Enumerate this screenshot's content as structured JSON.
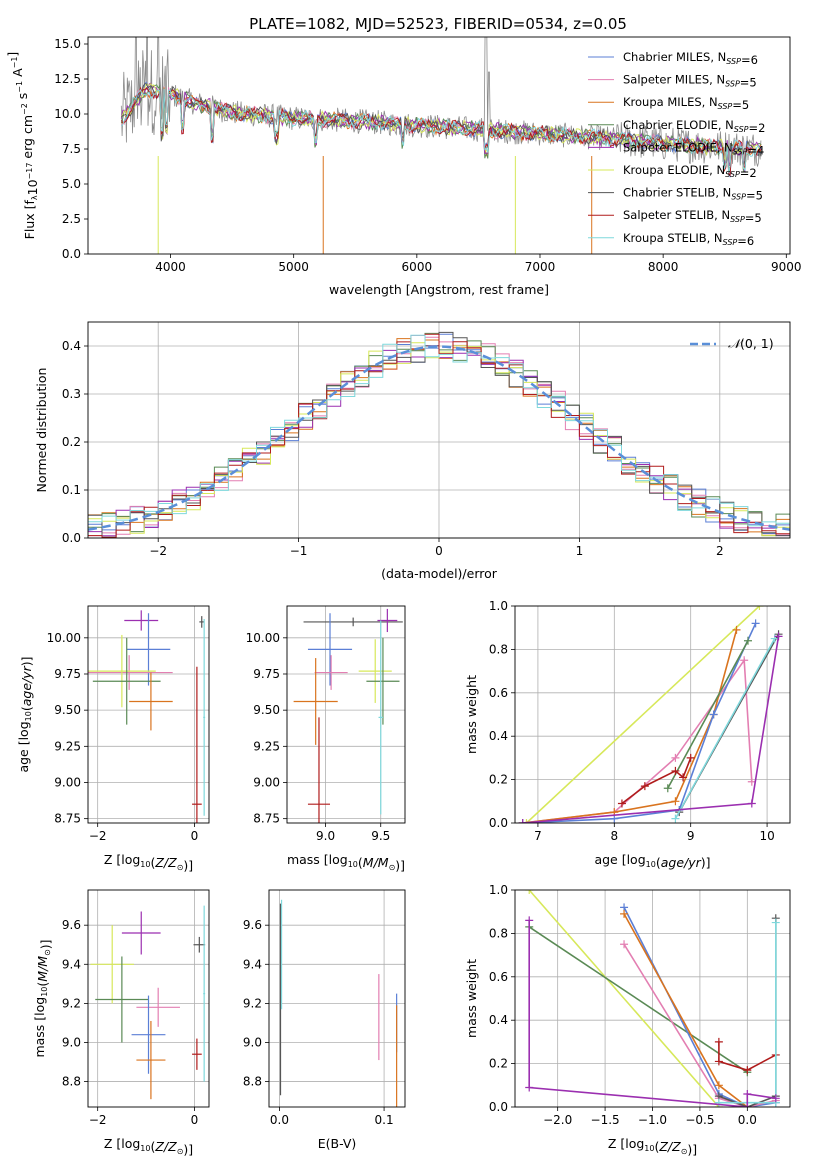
{
  "figure": {
    "title": "PLATE=1082, MJD=52523, FIBERID=0534, z=0.05"
  },
  "colors": {
    "Chabrier MILES": "#5b7fd6",
    "Salpeter MILES": "#e37fb2",
    "Kroupa MILES": "#d9741f",
    "Chabrier ELODIE": "#5a8a55",
    "Salpeter ELODIE": "#9b2fb0",
    "Kroupa ELODIE": "#d7e85a",
    "Chabrier STELIB": "#555555",
    "Salpeter STELIB": "#b01c1c",
    "Kroupa STELIB": "#7fd8dc",
    "data": "#8a8a8a",
    "normal": "#5a8fd8",
    "grid": "#b0b0b0"
  },
  "chart_data": [
    {
      "id": "spectrum",
      "type": "line",
      "xlabel": "wavelength [Angstrom, rest frame]",
      "ylabel": "Flux [f_λ 10^-17 erg cm^-2 s^-1 A^-1]",
      "xlim": [
        3330,
        9030
      ],
      "ylim": [
        0,
        15.5
      ],
      "xticks": [
        4000,
        5000,
        6000,
        7000,
        8000,
        9000
      ],
      "yticks": [
        0.0,
        2.5,
        5.0,
        7.5,
        10.0,
        12.5,
        15.0
      ],
      "grid": false,
      "legend_position": "top-right",
      "legend": [
        {
          "name": "Chabrier MILES",
          "nssp": "6"
        },
        {
          "name": "Salpeter MILES",
          "nssp": "5"
        },
        {
          "name": "Kroupa MILES",
          "nssp": "5"
        },
        {
          "name": "Chabrier ELODIE",
          "nssp": "2"
        },
        {
          "name": "Salpeter ELODIE",
          "nssp": "4"
        },
        {
          "name": "Kroupa ELODIE",
          "nssp": "2"
        },
        {
          "name": "Chabrier STELIB",
          "nssp": "5"
        },
        {
          "name": "Salpeter STELIB",
          "nssp": "5"
        },
        {
          "name": "Kroupa STELIB",
          "nssp": "6"
        }
      ],
      "continuum": {
        "x": [
          3600,
          3800,
          4000,
          4200,
          4500,
          5000,
          5500,
          6000,
          6500,
          7000,
          7500,
          8000,
          8500,
          8800
        ],
        "y": [
          9.6,
          11.8,
          11.4,
          10.8,
          10.1,
          9.7,
          9.5,
          9.2,
          8.9,
          8.6,
          8.3,
          7.9,
          7.6,
          7.5
        ]
      }
    },
    {
      "id": "residuals",
      "type": "step",
      "xlabel": "(data-model)/error",
      "ylabel": "Normed distribution",
      "xlim": [
        -2.5,
        2.5
      ],
      "ylim": [
        0,
        0.45
      ],
      "xticks": [
        -2,
        -1,
        0,
        1,
        2
      ],
      "yticks": [
        0.0,
        0.1,
        0.2,
        0.3,
        0.4
      ],
      "grid": true,
      "legend_position": "top-right",
      "reference_label": "N(0,1)",
      "bin_width": 0.1
    },
    {
      "id": "age_vs_Z",
      "type": "scatter",
      "xlabel": "Z [log10(Z/Z⊙)]",
      "ylabel": "age [log10(age/yr)]",
      "xlim": [
        -2.2,
        0.3
      ],
      "ylim": [
        8.72,
        10.22
      ],
      "xticks": [
        -2,
        0
      ],
      "yticks": [
        8.75,
        9.0,
        9.25,
        9.5,
        9.75,
        10.0
      ],
      "grid": true,
      "points": [
        {
          "series": "Salpeter ELODIE",
          "x": -1.1,
          "xerr": 0.35,
          "y": 10.12,
          "yerr": 0.07
        },
        {
          "series": "Chabrier MILES",
          "x": -0.95,
          "xerr": 0.45,
          "y": 9.92,
          "yerr": 0.25
        },
        {
          "series": "Salpeter MILES",
          "x": -1.35,
          "xerr": 0.9,
          "y": 9.76,
          "yerr": 0.12
        },
        {
          "series": "Kroupa ELODIE",
          "x": -1.5,
          "xerr": 0.7,
          "y": 9.77,
          "yerr": 0.25
        },
        {
          "series": "Chabrier ELODIE",
          "x": -1.4,
          "xerr": 0.7,
          "y": 9.7,
          "yerr": 0.3
        },
        {
          "series": "Kroupa MILES",
          "x": -0.9,
          "xerr": 0.45,
          "y": 9.56,
          "yerr": 0.2
        },
        {
          "series": "Salpeter STELIB",
          "x": 0.05,
          "xerr": 0.1,
          "y": 8.85,
          "yerr": 0.95
        },
        {
          "series": "Chabrier STELIB",
          "x": 0.15,
          "xerr": 0.05,
          "y": 10.11,
          "yerr": 0.04
        },
        {
          "series": "Kroupa STELIB",
          "x": 0.2,
          "xerr": 0.02,
          "y": 9.45,
          "yerr": 0.68
        }
      ]
    },
    {
      "id": "age_vs_mass",
      "type": "scatter",
      "xlabel": "mass [log10(M/M⊙)]",
      "ylabel": "",
      "xlim": [
        8.65,
        9.72
      ],
      "ylim": [
        8.72,
        10.22
      ],
      "xticks": [
        9.0,
        9.5
      ],
      "yticks": [
        8.75,
        9.0,
        9.25,
        9.5,
        9.75,
        10.0
      ],
      "grid": true,
      "points": [
        {
          "series": "Chabrier STELIB",
          "x": 9.25,
          "xerr": 0.45,
          "y": 10.11,
          "yerr": 0.03
        },
        {
          "series": "Salpeter ELODIE",
          "x": 9.56,
          "xerr": 0.09,
          "y": 10.12,
          "yerr": 0.08
        },
        {
          "series": "Chabrier MILES",
          "x": 9.04,
          "xerr": 0.2,
          "y": 9.92,
          "yerr": 0.25
        },
        {
          "series": "Kroupa ELODIE",
          "x": 9.45,
          "xerr": 0.15,
          "y": 9.77,
          "yerr": 0.22
        },
        {
          "series": "Salpeter MILES",
          "x": 9.05,
          "xerr": 0.15,
          "y": 9.76,
          "yerr": 0.12
        },
        {
          "series": "Chabrier ELODIE",
          "x": 9.52,
          "xerr": 0.15,
          "y": 9.7,
          "yerr": 0.3
        },
        {
          "series": "Kroupa MILES",
          "x": 8.91,
          "xerr": 0.2,
          "y": 9.56,
          "yerr": 0.3
        },
        {
          "series": "Salpeter STELIB",
          "x": 8.94,
          "xerr": 0.1,
          "y": 8.85,
          "yerr": 0.6
        },
        {
          "series": "Kroupa STELIB",
          "x": 9.5,
          "xerr": 0.02,
          "y": 9.45,
          "yerr": 0.67
        }
      ]
    },
    {
      "id": "massweight_vs_age",
      "type": "line",
      "xlabel": "age [log10(age/yr)]",
      "ylabel": "mass weight",
      "xlim": [
        6.7,
        10.3
      ],
      "ylim": [
        0,
        1
      ],
      "xticks": [
        7,
        8,
        9,
        10
      ],
      "yticks": [
        0.0,
        0.2,
        0.4,
        0.6,
        0.8,
        1.0
      ],
      "grid": true,
      "series": [
        {
          "name": "Kroupa ELODIE",
          "x": [
            6.85,
            9.9
          ],
          "y": [
            0.0,
            1.0
          ]
        },
        {
          "name": "Salpeter MILES",
          "x": [
            6.8,
            8.0,
            8.8,
            9.7,
            9.8
          ],
          "y": [
            0.0,
            0.05,
            0.3,
            0.75,
            0.19
          ]
        },
        {
          "name": "Kroupa MILES",
          "x": [
            6.8,
            8.0,
            8.8,
            9.3,
            9.6
          ],
          "y": [
            0.0,
            0.05,
            0.1,
            0.5,
            0.89
          ]
        },
        {
          "name": "Chabrier MILES",
          "x": [
            6.8,
            8.0,
            8.85,
            9.3,
            9.85
          ],
          "y": [
            0.0,
            0.02,
            0.06,
            0.5,
            0.92
          ]
        },
        {
          "name": "Chabrier ELODIE",
          "x": [
            8.7,
            9.75
          ],
          "y": [
            0.16,
            0.84
          ]
        },
        {
          "name": "Salpeter STELIB",
          "x": [
            8.1,
            8.4,
            8.8,
            8.9,
            9.0
          ],
          "y": [
            0.09,
            0.17,
            0.24,
            0.21,
            0.3
          ]
        },
        {
          "name": "Chabrier STELIB",
          "x": [
            8.85,
            10.15
          ],
          "y": [
            0.05,
            0.87
          ]
        },
        {
          "name": "Kroupa STELIB",
          "x": [
            8.8,
            10.1
          ],
          "y": [
            0.02,
            0.85
          ]
        },
        {
          "name": "Salpeter ELODIE",
          "x": [
            6.8,
            9.8,
            10.15
          ],
          "y": [
            0.0,
            0.09,
            0.86
          ]
        }
      ]
    },
    {
      "id": "mass_vs_Z",
      "type": "scatter",
      "xlabel": "Z [log10(Z/Z⊙)]",
      "ylabel": "mass [log10(M/M⊙)]",
      "xlim": [
        -2.2,
        0.3
      ],
      "ylim": [
        8.67,
        9.78
      ],
      "xticks": [
        -2,
        0
      ],
      "yticks": [
        8.8,
        9.0,
        9.2,
        9.4,
        9.6
      ],
      "grid": true,
      "points": [
        {
          "series": "Salpeter ELODIE",
          "x": -1.1,
          "xerr": 0.4,
          "y": 9.56,
          "yerr": 0.11
        },
        {
          "series": "Chabrier STELIB",
          "x": 0.1,
          "xerr": 0.12,
          "y": 9.5,
          "yerr": 0.04
        },
        {
          "series": "Kroupa ELODIE",
          "x": -1.7,
          "xerr": 0.45,
          "y": 9.4,
          "yerr": 0.2
        },
        {
          "series": "Chabrier ELODIE",
          "x": -1.5,
          "xerr": 0.55,
          "y": 9.22,
          "yerr": 0.22
        },
        {
          "series": "Salpeter MILES",
          "x": -0.75,
          "xerr": 0.45,
          "y": 9.18,
          "yerr": 0.1
        },
        {
          "series": "Chabrier MILES",
          "x": -0.95,
          "xerr": 0.35,
          "y": 9.04,
          "yerr": 0.2
        },
        {
          "series": "Kroupa MILES",
          "x": -0.9,
          "xerr": 0.3,
          "y": 8.91,
          "yerr": 0.2
        },
        {
          "series": "Salpeter STELIB",
          "x": 0.05,
          "xerr": 0.1,
          "y": 8.94,
          "yerr": 0.08
        },
        {
          "series": "Kroupa STELIB",
          "x": 0.2,
          "xerr": 0.02,
          "y": 9.25,
          "yerr": 0.45
        }
      ]
    },
    {
      "id": "mass_vs_ebv",
      "type": "scatter",
      "xlabel": "E(B-V)",
      "ylabel": "",
      "xlim": [
        -0.01,
        0.12
      ],
      "ylim": [
        8.67,
        9.78
      ],
      "xticks": [
        0.0,
        0.1
      ],
      "yticks": [
        8.8,
        9.0,
        9.2,
        9.4,
        9.6
      ],
      "grid": true,
      "points": [
        {
          "series": "Salpeter MILES",
          "x": 0.095,
          "xerr": 0.0,
          "y": 9.13,
          "yerr": 0.22
        },
        {
          "series": "Chabrier MILES",
          "x": 0.112,
          "xerr": 0.0,
          "y": 9.1,
          "yerr": 0.15
        },
        {
          "series": "Kroupa MILES",
          "x": 0.112,
          "xerr": 0.0,
          "y": 8.93,
          "yerr": 0.26
        },
        {
          "series": "Chabrier STELIB",
          "x": 0.001,
          "xerr": 0.0,
          "y": 9.22,
          "yerr": 0.49
        },
        {
          "series": "Kroupa STELIB",
          "x": 0.002,
          "xerr": 0.0,
          "y": 9.45,
          "yerr": 0.28
        }
      ]
    },
    {
      "id": "massweight_vs_Z",
      "type": "line",
      "xlabel": "Z [log10(Z/Z⊙)]",
      "ylabel": "mass weight",
      "xlim": [
        -2.45,
        0.45
      ],
      "ylim": [
        0,
        1
      ],
      "xticks": [
        -2.0,
        -1.5,
        -1.0,
        -0.5,
        0.0
      ],
      "yticks": [
        0.0,
        0.2,
        0.4,
        0.6,
        0.8,
        1.0
      ],
      "grid": true,
      "series": [
        {
          "name": "Kroupa ELODIE",
          "x": [
            -2.3,
            -0.3
          ],
          "y": [
            1.0,
            0.0
          ]
        },
        {
          "name": "Chabrier ELODIE",
          "x": [
            -2.3,
            0.0
          ],
          "y": [
            0.83,
            0.16
          ]
        },
        {
          "name": "Chabrier MILES",
          "x": [
            -1.3,
            -0.3,
            0.0,
            0.3
          ],
          "y": [
            0.92,
            0.06,
            0.0,
            0.02
          ]
        },
        {
          "name": "Kroupa MILES",
          "x": [
            -1.3,
            -0.3,
            0.0
          ],
          "y": [
            0.89,
            0.1,
            0.0
          ]
        },
        {
          "name": "Salpeter MILES",
          "x": [
            -1.3,
            -0.3,
            0.0,
            0.3
          ],
          "y": [
            0.75,
            0.04,
            0.0,
            0.03
          ]
        },
        {
          "name": "Salpeter STELIB",
          "x": [
            -0.3,
            -0.3,
            0.0,
            0.3
          ],
          "y": [
            0.3,
            0.21,
            0.17,
            0.24
          ]
        },
        {
          "name": "Chabrier STELIB",
          "x": [
            0.3,
            0.3,
            0.0,
            -0.3
          ],
          "y": [
            0.87,
            0.05,
            0.0,
            0.05
          ]
        },
        {
          "name": "Kroupa STELIB",
          "x": [
            0.3,
            0.3,
            -0.3
          ],
          "y": [
            0.85,
            0.02,
            0.02
          ]
        },
        {
          "name": "Salpeter ELODIE",
          "x": [
            -2.3,
            -2.3,
            0.0,
            0.0,
            0.3
          ],
          "y": [
            0.86,
            0.09,
            0.0,
            0.06,
            0.04
          ]
        }
      ]
    }
  ]
}
